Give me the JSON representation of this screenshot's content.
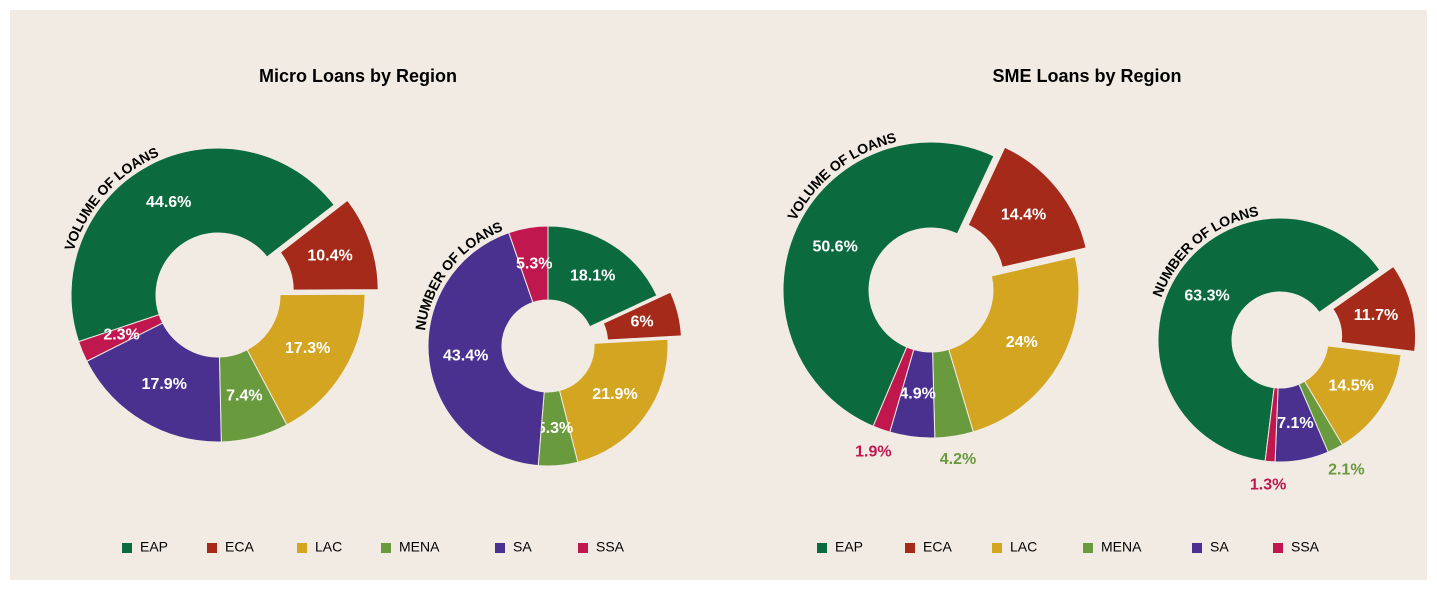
{
  "chart_data": [
    {
      "type": "donut",
      "title": "Micro Loans by Region",
      "categories": [
        "EAP",
        "ECA",
        "LAC",
        "MENA",
        "SA",
        "SSA"
      ],
      "colors": [
        "#0b6b3f",
        "#a52a1a",
        "#d4a520",
        "#6a9a3e",
        "#4a3190",
        "#c0174f"
      ],
      "explode": "ECA",
      "series": [
        {
          "name": "VOLUME OF LOANS",
          "values": [
            44.6,
            10.4,
            17.3,
            7.4,
            17.9,
            2.3
          ],
          "value_labels": [
            "44.6%",
            "10.4%",
            "17.3%",
            "7.4%",
            "17.9%",
            "2.3%"
          ]
        },
        {
          "name": "NUMBER OF LOANS",
          "values": [
            18.1,
            6,
            21.9,
            5.3,
            43.4,
            5.3
          ],
          "value_labels": [
            "18.1%",
            "6%",
            "21.9%",
            "5.3%",
            "43.4%",
            "5.3%"
          ]
        }
      ]
    },
    {
      "type": "donut",
      "title": "SME Loans by Region",
      "categories": [
        "EAP",
        "ECA",
        "LAC",
        "MENA",
        "SA",
        "SSA"
      ],
      "colors": [
        "#0b6b3f",
        "#a52a1a",
        "#d4a520",
        "#6a9a3e",
        "#4a3190",
        "#c0174f"
      ],
      "explode": "ECA",
      "series": [
        {
          "name": "VOLUME OF LOANS",
          "values": [
            50.6,
            14.4,
            24,
            4.2,
            4.9,
            1.9
          ],
          "value_labels": [
            "50.6%",
            "14.4%",
            "24%",
            "4.2%",
            "4.9%",
            "1.9%"
          ]
        },
        {
          "name": "NUMBER OF LOANS",
          "values": [
            63.3,
            11.7,
            14.5,
            2.1,
            7.1,
            1.3
          ],
          "value_labels": [
            "63.3%",
            "11.7%",
            "14.5%",
            "2.1%",
            "7.1%",
            "1.3%"
          ]
        }
      ]
    }
  ]
}
